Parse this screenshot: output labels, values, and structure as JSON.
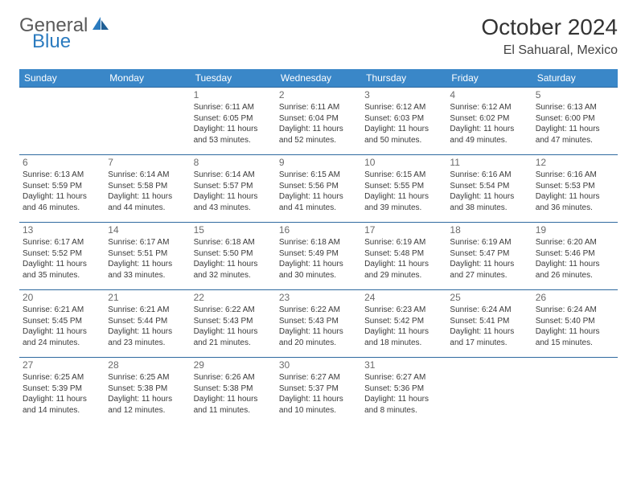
{
  "logo": {
    "part_a": "General",
    "part_b": "Blue"
  },
  "header": {
    "title": "October 2024",
    "location": "El Sahuaral, Mexico"
  },
  "colors": {
    "header_bg": "#3a87c8",
    "header_text": "#ffffff",
    "row_border": "#2f6aa0",
    "daynum": "#6b6b6b",
    "info_text": "#3a3a3a",
    "logo_gray": "#5a5a5a",
    "logo_blue": "#2b7bbf"
  },
  "day_headers": [
    "Sunday",
    "Monday",
    "Tuesday",
    "Wednesday",
    "Thursday",
    "Friday",
    "Saturday"
  ],
  "weeks": [
    [
      null,
      null,
      {
        "n": "1",
        "sr": "Sunrise: 6:11 AM",
        "ss": "Sunset: 6:05 PM",
        "dl": "Daylight: 11 hours and 53 minutes."
      },
      {
        "n": "2",
        "sr": "Sunrise: 6:11 AM",
        "ss": "Sunset: 6:04 PM",
        "dl": "Daylight: 11 hours and 52 minutes."
      },
      {
        "n": "3",
        "sr": "Sunrise: 6:12 AM",
        "ss": "Sunset: 6:03 PM",
        "dl": "Daylight: 11 hours and 50 minutes."
      },
      {
        "n": "4",
        "sr": "Sunrise: 6:12 AM",
        "ss": "Sunset: 6:02 PM",
        "dl": "Daylight: 11 hours and 49 minutes."
      },
      {
        "n": "5",
        "sr": "Sunrise: 6:13 AM",
        "ss": "Sunset: 6:00 PM",
        "dl": "Daylight: 11 hours and 47 minutes."
      }
    ],
    [
      {
        "n": "6",
        "sr": "Sunrise: 6:13 AM",
        "ss": "Sunset: 5:59 PM",
        "dl": "Daylight: 11 hours and 46 minutes."
      },
      {
        "n": "7",
        "sr": "Sunrise: 6:14 AM",
        "ss": "Sunset: 5:58 PM",
        "dl": "Daylight: 11 hours and 44 minutes."
      },
      {
        "n": "8",
        "sr": "Sunrise: 6:14 AM",
        "ss": "Sunset: 5:57 PM",
        "dl": "Daylight: 11 hours and 43 minutes."
      },
      {
        "n": "9",
        "sr": "Sunrise: 6:15 AM",
        "ss": "Sunset: 5:56 PM",
        "dl": "Daylight: 11 hours and 41 minutes."
      },
      {
        "n": "10",
        "sr": "Sunrise: 6:15 AM",
        "ss": "Sunset: 5:55 PM",
        "dl": "Daylight: 11 hours and 39 minutes."
      },
      {
        "n": "11",
        "sr": "Sunrise: 6:16 AM",
        "ss": "Sunset: 5:54 PM",
        "dl": "Daylight: 11 hours and 38 minutes."
      },
      {
        "n": "12",
        "sr": "Sunrise: 6:16 AM",
        "ss": "Sunset: 5:53 PM",
        "dl": "Daylight: 11 hours and 36 minutes."
      }
    ],
    [
      {
        "n": "13",
        "sr": "Sunrise: 6:17 AM",
        "ss": "Sunset: 5:52 PM",
        "dl": "Daylight: 11 hours and 35 minutes."
      },
      {
        "n": "14",
        "sr": "Sunrise: 6:17 AM",
        "ss": "Sunset: 5:51 PM",
        "dl": "Daylight: 11 hours and 33 minutes."
      },
      {
        "n": "15",
        "sr": "Sunrise: 6:18 AM",
        "ss": "Sunset: 5:50 PM",
        "dl": "Daylight: 11 hours and 32 minutes."
      },
      {
        "n": "16",
        "sr": "Sunrise: 6:18 AM",
        "ss": "Sunset: 5:49 PM",
        "dl": "Daylight: 11 hours and 30 minutes."
      },
      {
        "n": "17",
        "sr": "Sunrise: 6:19 AM",
        "ss": "Sunset: 5:48 PM",
        "dl": "Daylight: 11 hours and 29 minutes."
      },
      {
        "n": "18",
        "sr": "Sunrise: 6:19 AM",
        "ss": "Sunset: 5:47 PM",
        "dl": "Daylight: 11 hours and 27 minutes."
      },
      {
        "n": "19",
        "sr": "Sunrise: 6:20 AM",
        "ss": "Sunset: 5:46 PM",
        "dl": "Daylight: 11 hours and 26 minutes."
      }
    ],
    [
      {
        "n": "20",
        "sr": "Sunrise: 6:21 AM",
        "ss": "Sunset: 5:45 PM",
        "dl": "Daylight: 11 hours and 24 minutes."
      },
      {
        "n": "21",
        "sr": "Sunrise: 6:21 AM",
        "ss": "Sunset: 5:44 PM",
        "dl": "Daylight: 11 hours and 23 minutes."
      },
      {
        "n": "22",
        "sr": "Sunrise: 6:22 AM",
        "ss": "Sunset: 5:43 PM",
        "dl": "Daylight: 11 hours and 21 minutes."
      },
      {
        "n": "23",
        "sr": "Sunrise: 6:22 AM",
        "ss": "Sunset: 5:43 PM",
        "dl": "Daylight: 11 hours and 20 minutes."
      },
      {
        "n": "24",
        "sr": "Sunrise: 6:23 AM",
        "ss": "Sunset: 5:42 PM",
        "dl": "Daylight: 11 hours and 18 minutes."
      },
      {
        "n": "25",
        "sr": "Sunrise: 6:24 AM",
        "ss": "Sunset: 5:41 PM",
        "dl": "Daylight: 11 hours and 17 minutes."
      },
      {
        "n": "26",
        "sr": "Sunrise: 6:24 AM",
        "ss": "Sunset: 5:40 PM",
        "dl": "Daylight: 11 hours and 15 minutes."
      }
    ],
    [
      {
        "n": "27",
        "sr": "Sunrise: 6:25 AM",
        "ss": "Sunset: 5:39 PM",
        "dl": "Daylight: 11 hours and 14 minutes."
      },
      {
        "n": "28",
        "sr": "Sunrise: 6:25 AM",
        "ss": "Sunset: 5:38 PM",
        "dl": "Daylight: 11 hours and 12 minutes."
      },
      {
        "n": "29",
        "sr": "Sunrise: 6:26 AM",
        "ss": "Sunset: 5:38 PM",
        "dl": "Daylight: 11 hours and 11 minutes."
      },
      {
        "n": "30",
        "sr": "Sunrise: 6:27 AM",
        "ss": "Sunset: 5:37 PM",
        "dl": "Daylight: 11 hours and 10 minutes."
      },
      {
        "n": "31",
        "sr": "Sunrise: 6:27 AM",
        "ss": "Sunset: 5:36 PM",
        "dl": "Daylight: 11 hours and 8 minutes."
      },
      null,
      null
    ]
  ]
}
